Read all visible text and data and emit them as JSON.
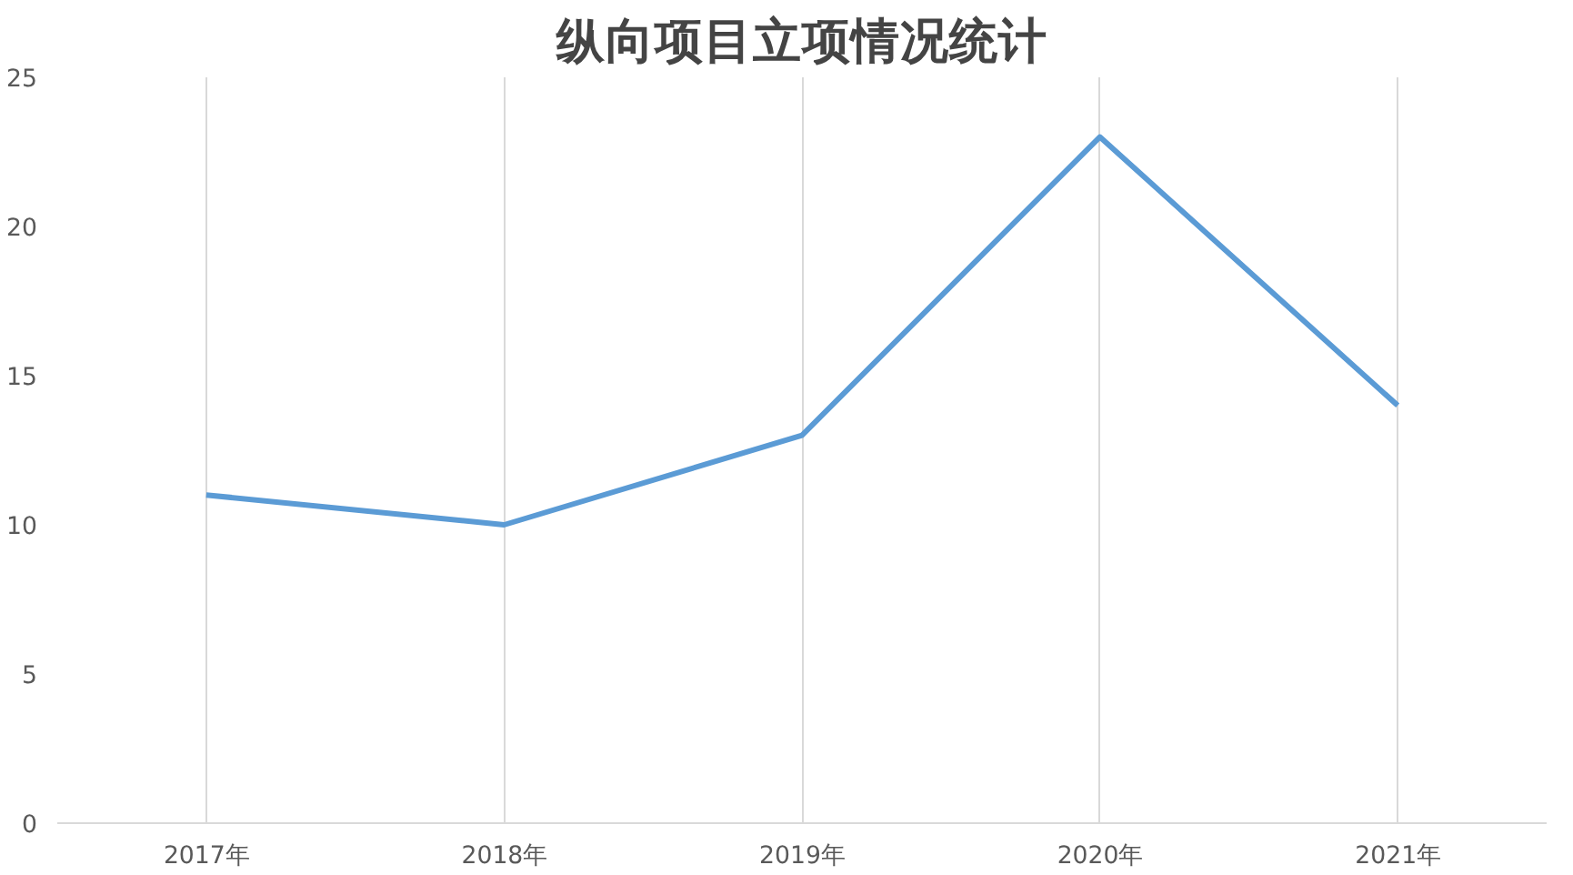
{
  "chart_data": {
    "type": "line",
    "title": "纵向项目立项情况统计",
    "categories": [
      "2017年",
      "2018年",
      "2019年",
      "2020年",
      "2021年"
    ],
    "series": [
      {
        "color": "#5b9bd5",
        "values": [
          11,
          10,
          13,
          23,
          14
        ]
      }
    ],
    "ylim": [
      0,
      25
    ],
    "yticks": [
      0,
      5,
      10,
      15,
      20,
      25
    ],
    "grid": "x",
    "marker": "none",
    "line_style": "solid"
  }
}
